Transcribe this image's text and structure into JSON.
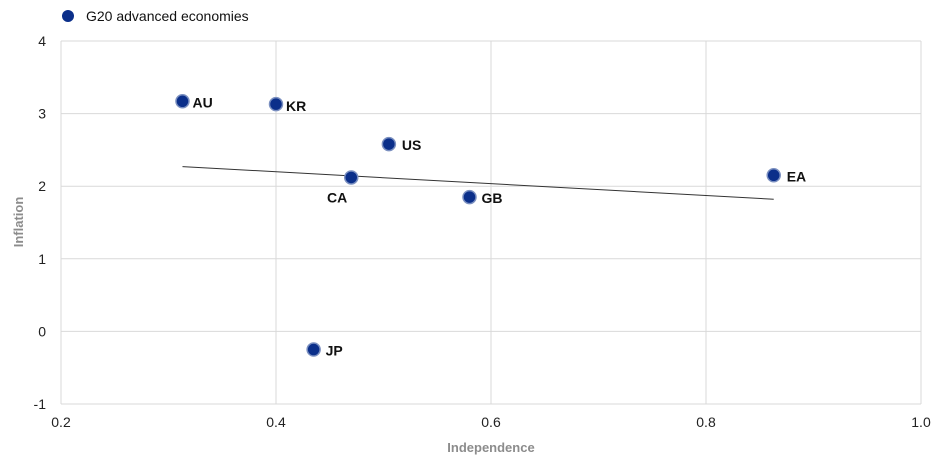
{
  "chart_data": {
    "type": "scatter",
    "title": "",
    "xlabel": "Independence",
    "ylabel": "Inflation",
    "xlim": [
      0.2,
      1.0
    ],
    "ylim": [
      -1,
      4
    ],
    "xticks": [
      "0.2",
      "0.4",
      "0.6",
      "0.8",
      "1.0"
    ],
    "yticks": [
      "-1",
      "0",
      "1",
      "2",
      "3",
      "4"
    ],
    "grid": true,
    "legend_position": "top-left",
    "series": [
      {
        "name": "G20 advanced economies",
        "color": "#0b2f8a",
        "points": [
          {
            "label": "AU",
            "x": 0.313,
            "y": 3.17
          },
          {
            "label": "KR",
            "x": 0.4,
            "y": 3.13
          },
          {
            "label": "US",
            "x": 0.505,
            "y": 2.58
          },
          {
            "label": "CA",
            "x": 0.47,
            "y": 2.12
          },
          {
            "label": "GB",
            "x": 0.58,
            "y": 1.85
          },
          {
            "label": "EA",
            "x": 0.863,
            "y": 2.15
          },
          {
            "label": "JP",
            "x": 0.435,
            "y": -0.25
          }
        ]
      }
    ],
    "trendline": {
      "x": [
        0.313,
        0.863
      ],
      "y": [
        2.27,
        1.82
      ],
      "color": "#333333"
    }
  }
}
